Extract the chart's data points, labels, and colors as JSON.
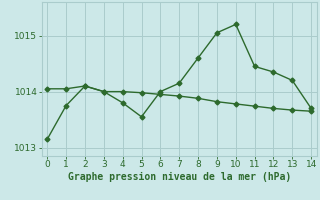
{
  "x": [
    0,
    1,
    2,
    3,
    4,
    5,
    6,
    7,
    8,
    9,
    10,
    11,
    12,
    13,
    14
  ],
  "y_jagged": [
    1013.15,
    1013.75,
    1014.1,
    1014.0,
    1013.8,
    1013.55,
    1014.0,
    1014.15,
    1014.6,
    1015.05,
    1015.2,
    1014.45,
    1014.35,
    1014.2,
    1013.7
  ],
  "y_smooth": [
    1014.05,
    1014.05,
    1014.1,
    1014.0,
    1014.0,
    1013.98,
    1013.95,
    1013.92,
    1013.88,
    1013.82,
    1013.78,
    1013.74,
    1013.7,
    1013.67,
    1013.65
  ],
  "line_color": "#2d6a2d",
  "bg_color": "#cce8e8",
  "grid_color": "#aacccc",
  "xlabel": "Graphe pression niveau de la mer (hPa)",
  "yticks": [
    1013,
    1014,
    1015
  ],
  "xlim": [
    -0.3,
    14.3
  ],
  "ylim": [
    1012.85,
    1015.6
  ],
  "marker": "D",
  "marker_size": 2.5,
  "line_width": 1.0,
  "xlabel_fontsize": 7,
  "ytick_fontsize": 6.5,
  "xtick_fontsize": 6.5
}
